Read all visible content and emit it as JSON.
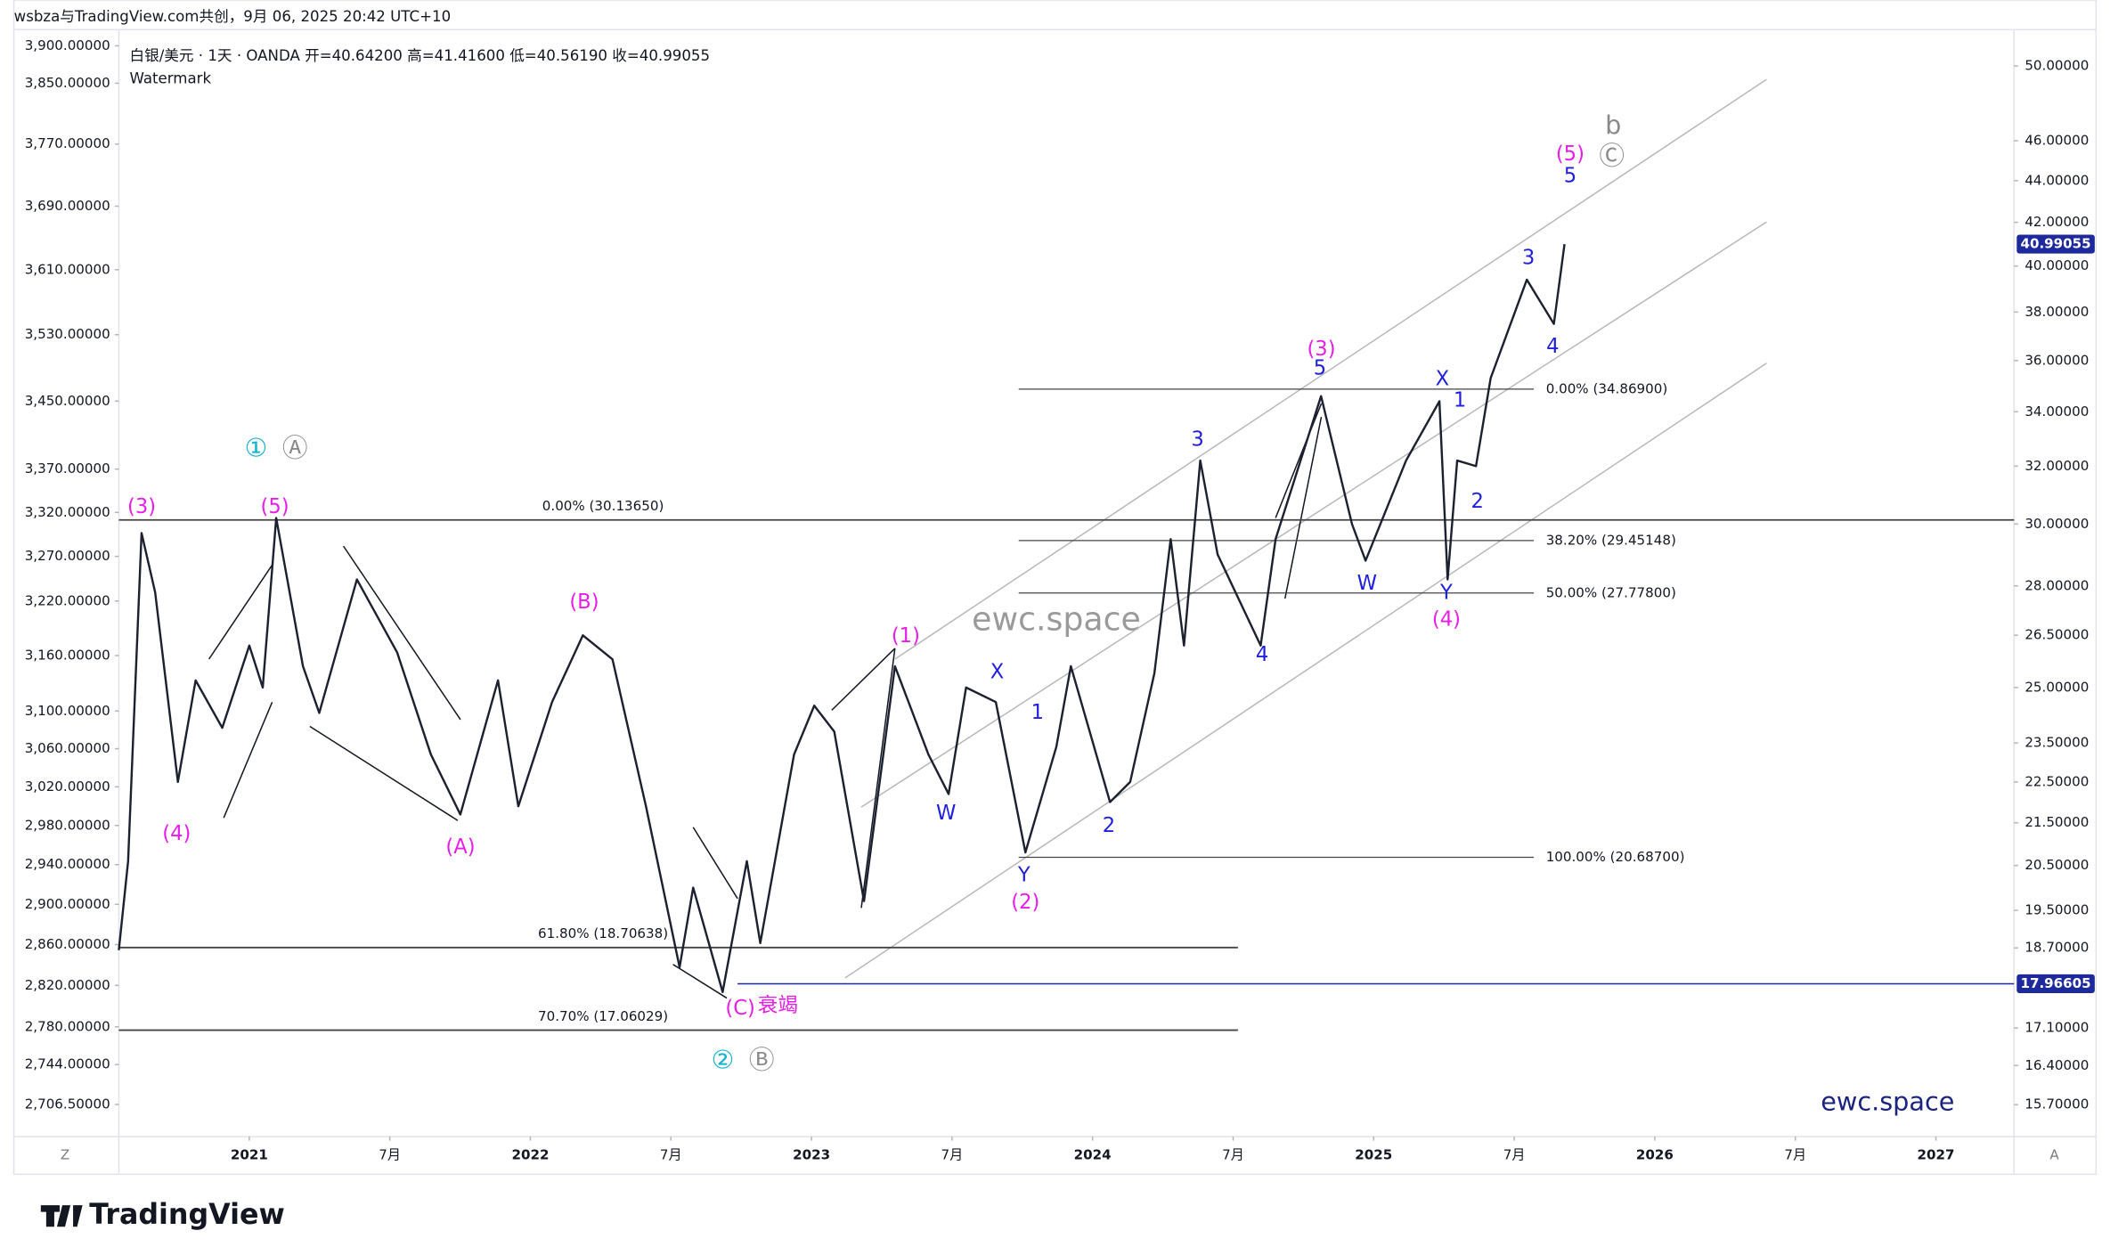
{
  "chart_data": {
    "type": "line",
    "attribution": "wsbza与TradingView.com共创，9月 06, 2025 20:42 UTC+10",
    "title": "白银/美元 · 1天 · OANDA  开=40.64200  高=41.41600  低=40.56190  收=40.99055",
    "subtitle": "Watermark",
    "watermark": "ewc.space",
    "brand": "TradingView",
    "left_button": "Z",
    "right_button": "A",
    "log_scale": true,
    "xlim": [
      2020.536,
      2027.278
    ],
    "xticks": [
      {
        "value": 2021,
        "label": "2021"
      },
      {
        "value": 2021.5,
        "label": "7月"
      },
      {
        "value": 2022,
        "label": "2022"
      },
      {
        "value": 2022.5,
        "label": "7月"
      },
      {
        "value": 2023,
        "label": "2023"
      },
      {
        "value": 2023.5,
        "label": "7月"
      },
      {
        "value": 2024,
        "label": "2024"
      },
      {
        "value": 2024.5,
        "label": "7月"
      },
      {
        "value": 2025,
        "label": "2025"
      },
      {
        "value": 2025.5,
        "label": "7月"
      },
      {
        "value": 2026,
        "label": "2026"
      },
      {
        "value": 2026.5,
        "label": "7月"
      },
      {
        "value": 2027,
        "label": "2027"
      }
    ],
    "ylim": [
      2676.6,
      3921.9
    ],
    "yticks": [
      {
        "value": 3900,
        "label": "3,900.00000"
      },
      {
        "value": 3850,
        "label": "3,850.00000"
      },
      {
        "value": 3770,
        "label": "3,770.00000"
      },
      {
        "value": 3690,
        "label": "3,690.00000"
      },
      {
        "value": 3610,
        "label": "3,610.00000"
      },
      {
        "value": 3530,
        "label": "3,530.00000"
      },
      {
        "value": 3450,
        "label": "3,450.00000"
      },
      {
        "value": 3370,
        "label": "3,370.00000"
      },
      {
        "value": 3320,
        "label": "3,320.00000"
      },
      {
        "value": 3270,
        "label": "3,270.00000"
      },
      {
        "value": 3220,
        "label": "3,220.00000"
      },
      {
        "value": 3160,
        "label": "3,160.00000"
      },
      {
        "value": 3100,
        "label": "3,100.00000"
      },
      {
        "value": 3060,
        "label": "3,060.00000"
      },
      {
        "value": 3020,
        "label": "3,020.00000"
      },
      {
        "value": 2980,
        "label": "2,980.00000"
      },
      {
        "value": 2940,
        "label": "2,940.00000"
      },
      {
        "value": 2900,
        "label": "2,900.00000"
      },
      {
        "value": 2860,
        "label": "2,860.00000"
      },
      {
        "value": 2820,
        "label": "2,820.00000"
      },
      {
        "value": 2780,
        "label": "2,780.00000"
      },
      {
        "value": 2744,
        "label": "2,744.00000"
      },
      {
        "value": 2706.5,
        "label": "2,706.50000"
      }
    ],
    "y2lim": [
      15.15,
      52.07
    ],
    "y2ticks": [
      {
        "value": 50,
        "label": "50.00000"
      },
      {
        "value": 46,
        "label": "46.00000"
      },
      {
        "value": 44,
        "label": "44.00000"
      },
      {
        "value": 42,
        "label": "42.00000"
      },
      {
        "value": 40,
        "label": "40.00000"
      },
      {
        "value": 38,
        "label": "38.00000"
      },
      {
        "value": 36,
        "label": "36.00000"
      },
      {
        "value": 34,
        "label": "34.00000"
      },
      {
        "value": 32,
        "label": "32.00000"
      },
      {
        "value": 30,
        "label": "30.00000"
      },
      {
        "value": 28,
        "label": "28.00000"
      },
      {
        "value": 26.5,
        "label": "26.50000"
      },
      {
        "value": 25,
        "label": "25.00000"
      },
      {
        "value": 23.5,
        "label": "23.50000"
      },
      {
        "value": 22.5,
        "label": "22.50000"
      },
      {
        "value": 21.5,
        "label": "21.50000"
      },
      {
        "value": 20.5,
        "label": "20.50000"
      },
      {
        "value": 19.5,
        "label": "19.50000"
      },
      {
        "value": 18.7,
        "label": "18.70000"
      },
      {
        "value": 17.1,
        "label": "17.10000"
      },
      {
        "value": 16.4,
        "label": "16.40000"
      },
      {
        "value": 15.7,
        "label": "15.70000"
      }
    ],
    "series": [
      {
        "name": "白银/美元",
        "color": "#1c2130",
        "axis": "y2",
        "x": [
          2020.536,
          2020.569,
          2020.617,
          2020.665,
          2020.746,
          2020.809,
          2020.904,
          2021.0,
          2021.048,
          2021.096,
          2021.191,
          2021.249,
          2021.383,
          2021.526,
          2021.646,
          2021.751,
          2021.885,
          2021.957,
          2022.077,
          2022.187,
          2022.292,
          2022.411,
          2022.531,
          2022.579,
          2022.684,
          2022.77,
          2022.818,
          2022.938,
          2023.01,
          2023.081,
          2023.187,
          2023.297,
          2023.416,
          2023.488,
          2023.55,
          2023.656,
          2023.761,
          2023.871,
          2023.923,
          2024.062,
          2024.134,
          2024.22,
          2024.278,
          2024.325,
          2024.383,
          2024.445,
          2024.598,
          2024.651,
          2024.813,
          2024.923,
          2024.971,
          2025.115,
          2025.234,
          2025.263,
          2025.297,
          2025.364,
          2025.416,
          2025.545,
          2025.641,
          2025.679
        ],
        "values": [
          18.65,
          20.6,
          29.7,
          27.8,
          22.5,
          25.2,
          23.9,
          26.2,
          25.0,
          30.2,
          25.6,
          24.3,
          28.2,
          26.0,
          23.2,
          21.7,
          25.2,
          21.9,
          24.6,
          26.5,
          25.8,
          21.9,
          18.3,
          20.0,
          17.8,
          20.6,
          18.8,
          23.2,
          24.5,
          23.8,
          19.7,
          25.6,
          23.2,
          22.2,
          25.0,
          24.6,
          20.8,
          23.4,
          25.6,
          22.0,
          22.5,
          25.4,
          29.5,
          26.2,
          32.2,
          29.0,
          26.2,
          29.5,
          34.6,
          30.0,
          28.8,
          32.2,
          34.4,
          28.2,
          32.2,
          32.0,
          35.3,
          39.4,
          37.5,
          40.99055
        ]
      }
    ],
    "last_price": 40.99055,
    "ref_line": 17.96605,
    "levels": [
      {
        "label": "0.00% (30.13650)",
        "value": 30.1365
      },
      {
        "label": "61.80% (18.70638)",
        "value": 18.70638
      },
      {
        "label": "70.70% (17.06029)",
        "value": 17.06029
      },
      {
        "label": "0.00% (34.86900)",
        "value": 34.869
      },
      {
        "label": "38.20% (29.45148)",
        "value": 29.45148
      },
      {
        "label": "50.00% (27.77800)",
        "value": 27.778
      },
      {
        "label": "100.00% (20.68700)",
        "value": 20.687
      }
    ],
    "wave_labels": [
      {
        "text": "(3)",
        "color": "#e61ee6"
      },
      {
        "text": "(5)",
        "color": "#e61ee6"
      },
      {
        "text": "(4)",
        "color": "#e61ee6"
      },
      {
        "text": "(A)",
        "color": "#e61ee6"
      },
      {
        "text": "(B)",
        "color": "#e61ee6"
      },
      {
        "text": "(C)",
        "color": "#e61ee6"
      },
      {
        "text": "衰竭",
        "color": "#e61ee6"
      },
      {
        "text": "(1)",
        "color": "#e61ee6"
      },
      {
        "text": "(2)",
        "color": "#e61ee6"
      },
      {
        "text": "(3)",
        "color": "#e61ee6"
      },
      {
        "text": "(4)",
        "color": "#e61ee6"
      },
      {
        "text": "(5)",
        "color": "#e61ee6"
      },
      {
        "text": "X",
        "color": "#1f1fe0"
      },
      {
        "text": "W",
        "color": "#1f1fe0"
      },
      {
        "text": "1",
        "color": "#1f1fe0"
      },
      {
        "text": "Y",
        "color": "#1f1fe0"
      },
      {
        "text": "2",
        "color": "#1f1fe0"
      },
      {
        "text": "3",
        "color": "#1f1fe0"
      },
      {
        "text": "4",
        "color": "#1f1fe0"
      },
      {
        "text": "5",
        "color": "#1f1fe0"
      },
      {
        "text": "W",
        "color": "#1f1fe0"
      },
      {
        "text": "X",
        "color": "#1f1fe0"
      },
      {
        "text": "Y",
        "color": "#1f1fe0"
      },
      {
        "text": "1",
        "color": "#1f1fe0"
      },
      {
        "text": "2",
        "color": "#1f1fe0"
      },
      {
        "text": "3",
        "color": "#1f1fe0"
      },
      {
        "text": "4",
        "color": "#1f1fe0"
      },
      {
        "text": "5",
        "color": "#1f1fe0"
      },
      {
        "text": "b",
        "color": "#8a8a8a"
      },
      {
        "text": "Ⓒ",
        "color": "#8a8a8a"
      },
      {
        "text": "Ⓐ",
        "color": "#8a8a8a"
      },
      {
        "text": "Ⓑ",
        "color": "#8a8a8a"
      },
      {
        "text": "①",
        "color": "#17b3cc"
      },
      {
        "text": "②",
        "color": "#17b3cc"
      }
    ]
  }
}
